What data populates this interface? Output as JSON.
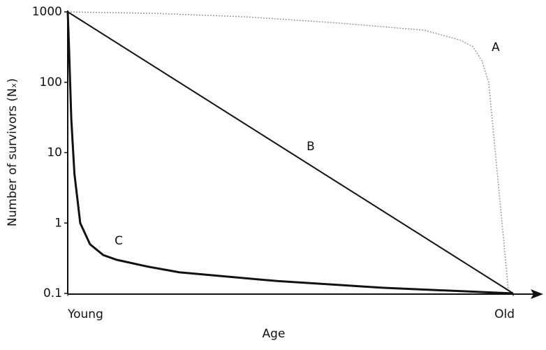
{
  "chart_data": {
    "type": "line",
    "ylabel": "Number of survivors (Nₓ)",
    "xlabel": "Age",
    "ylim": [
      0.1,
      1000
    ],
    "yticks": [
      0.1,
      1,
      10,
      100,
      1000
    ],
    "yscale": "log",
    "xlim": [
      0,
      100
    ],
    "xticks": [
      {
        "value": 0,
        "label": "Young"
      },
      {
        "value": 100,
        "label": "Old"
      }
    ],
    "series": [
      {
        "name": "A",
        "color": "#9a9a9a",
        "dotted": true,
        "x": [
          0,
          20,
          40,
          60,
          80,
          88,
          91,
          93,
          94.5,
          96,
          97.5,
          99
        ],
        "values": [
          1000,
          950,
          850,
          700,
          550,
          400,
          320,
          200,
          100,
          10,
          1,
          0.1
        ]
      },
      {
        "name": "B",
        "color": "#111111",
        "dotted": false,
        "x": [
          0,
          100
        ],
        "values": [
          1000,
          0.1
        ]
      },
      {
        "name": "C",
        "color": "#111111",
        "dotted": false,
        "x": [
          0,
          0.3,
          0.8,
          1.5,
          2.8,
          5,
          8,
          11,
          18,
          25,
          47,
          71,
          100
        ],
        "values": [
          1000,
          300,
          30,
          5,
          1,
          0.5,
          0.35,
          0.3,
          0.24,
          0.2,
          0.15,
          0.12,
          0.1
        ]
      }
    ]
  }
}
